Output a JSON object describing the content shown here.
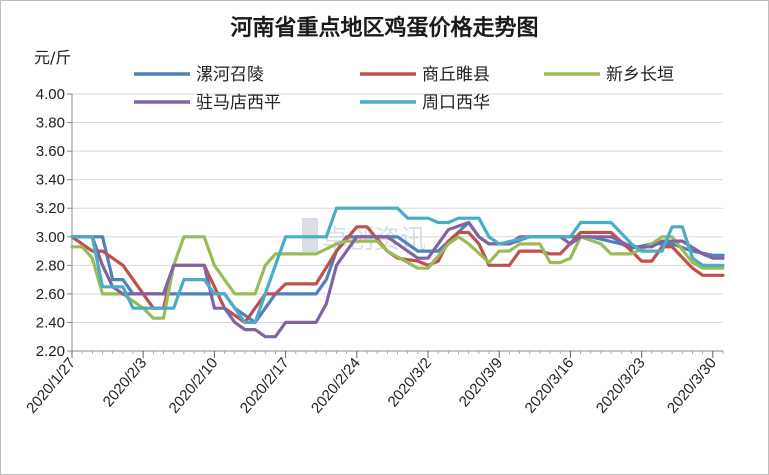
{
  "chart_data": {
    "type": "line",
    "title": "河南省重点地区鸡蛋价格走势图",
    "y_unit": "元/斤",
    "ylim": [
      2.2,
      4.0
    ],
    "yticks": [
      2.2,
      2.4,
      2.6,
      2.8,
      3.0,
      3.2,
      3.4,
      3.6,
      3.8,
      4.0
    ],
    "ytick_labels": [
      "2.20",
      "2.40",
      "2.60",
      "2.80",
      "3.00",
      "3.20",
      "3.40",
      "3.60",
      "3.80",
      "4.00"
    ],
    "x_start": "2020-01-27",
    "x_end": "2020-03-31",
    "xtick_labels": [
      "2020/1/27",
      "2020/2/3",
      "2020/2/10",
      "2020/2/17",
      "2020/2/24",
      "2020/3/2",
      "2020/3/9",
      "2020/3/16",
      "2020/3/23",
      "2020/3/30"
    ],
    "grid": "horizontal",
    "legend_position": "top",
    "watermark": "卓创资讯",
    "series": [
      {
        "name": "漯河召陵",
        "color": "#4f81bd",
        "points": [
          [
            "2020-01-27",
            3.0
          ],
          [
            "2020-01-30",
            3.0
          ],
          [
            "2020-01-31",
            2.7
          ],
          [
            "2020-02-01",
            2.7
          ],
          [
            "2020-02-02",
            2.6
          ],
          [
            "2020-02-05",
            2.6
          ],
          [
            "2020-02-06",
            2.6
          ],
          [
            "2020-02-07",
            2.6
          ],
          [
            "2020-02-11",
            2.6
          ],
          [
            "2020-02-12",
            2.5
          ],
          [
            "2020-02-14",
            2.4
          ],
          [
            "2020-02-15",
            2.5
          ],
          [
            "2020-02-16",
            2.6
          ],
          [
            "2020-02-20",
            2.6
          ],
          [
            "2020-02-21",
            2.7
          ],
          [
            "2020-02-22",
            2.9
          ],
          [
            "2020-02-23",
            3.0
          ],
          [
            "2020-02-28",
            3.0
          ],
          [
            "2020-03-01",
            2.9
          ],
          [
            "2020-03-03",
            2.9
          ],
          [
            "2020-03-06",
            3.1
          ],
          [
            "2020-03-07",
            3.0
          ],
          [
            "2020-03-08",
            2.95
          ],
          [
            "2020-03-10",
            2.95
          ],
          [
            "2020-03-12",
            3.0
          ],
          [
            "2020-03-15",
            3.0
          ],
          [
            "2020-03-17",
            3.0
          ],
          [
            "2020-03-18",
            3.0
          ],
          [
            "2020-03-21",
            2.95
          ],
          [
            "2020-03-22",
            2.92
          ],
          [
            "2020-03-24",
            2.95
          ],
          [
            "2020-03-26",
            2.95
          ],
          [
            "2020-03-28",
            2.9
          ],
          [
            "2020-03-30",
            2.87
          ],
          [
            "2020-03-31",
            2.87
          ]
        ]
      },
      {
        "name": "商丘睢县",
        "color": "#c0504d",
        "points": [
          [
            "2020-01-27",
            3.0
          ],
          [
            "2020-01-29",
            2.9
          ],
          [
            "2020-01-30",
            2.9
          ],
          [
            "2020-02-01",
            2.8
          ],
          [
            "2020-02-03",
            2.6
          ],
          [
            "2020-02-04",
            2.5
          ],
          [
            "2020-02-05",
            2.5
          ],
          [
            "2020-02-06",
            2.8
          ],
          [
            "2020-02-09",
            2.8
          ],
          [
            "2020-02-11",
            2.5
          ],
          [
            "2020-02-12",
            2.45
          ],
          [
            "2020-02-13",
            2.4
          ],
          [
            "2020-02-15",
            2.6
          ],
          [
            "2020-02-16",
            2.6
          ],
          [
            "2020-02-17",
            2.67
          ],
          [
            "2020-02-20",
            2.67
          ],
          [
            "2020-02-22",
            2.9
          ],
          [
            "2020-02-24",
            3.07
          ],
          [
            "2020-02-25",
            3.07
          ],
          [
            "2020-02-27",
            2.9
          ],
          [
            "2020-02-28",
            2.85
          ],
          [
            "2020-03-01",
            2.83
          ],
          [
            "2020-03-02",
            2.8
          ],
          [
            "2020-03-03",
            2.83
          ],
          [
            "2020-03-04",
            2.97
          ],
          [
            "2020-03-05",
            3.03
          ],
          [
            "2020-03-06",
            3.03
          ],
          [
            "2020-03-07",
            2.95
          ],
          [
            "2020-03-08",
            2.8
          ],
          [
            "2020-03-10",
            2.8
          ],
          [
            "2020-03-11",
            2.9
          ],
          [
            "2020-03-13",
            2.9
          ],
          [
            "2020-03-14",
            2.88
          ],
          [
            "2020-03-15",
            2.88
          ],
          [
            "2020-03-17",
            3.03
          ],
          [
            "2020-03-20",
            3.03
          ],
          [
            "2020-03-22",
            2.9
          ],
          [
            "2020-03-23",
            2.83
          ],
          [
            "2020-03-24",
            2.83
          ],
          [
            "2020-03-25",
            2.93
          ],
          [
            "2020-03-26",
            2.93
          ],
          [
            "2020-03-28",
            2.78
          ],
          [
            "2020-03-29",
            2.73
          ],
          [
            "2020-03-31",
            2.73
          ]
        ]
      },
      {
        "name": "新乡长垣",
        "color": "#9bbb59",
        "points": [
          [
            "2020-01-27",
            2.93
          ],
          [
            "2020-01-28",
            2.93
          ],
          [
            "2020-01-29",
            2.85
          ],
          [
            "2020-01-30",
            2.6
          ],
          [
            "2020-01-31",
            2.6
          ],
          [
            "2020-02-01",
            2.6
          ],
          [
            "2020-02-03",
            2.5
          ],
          [
            "2020-02-04",
            2.43
          ],
          [
            "2020-02-05",
            2.43
          ],
          [
            "2020-02-06",
            2.8
          ],
          [
            "2020-02-07",
            3.0
          ],
          [
            "2020-02-09",
            3.0
          ],
          [
            "2020-02-10",
            2.8
          ],
          [
            "2020-02-12",
            2.6
          ],
          [
            "2020-02-14",
            2.6
          ],
          [
            "2020-02-15",
            2.8
          ],
          [
            "2020-02-16",
            2.88
          ],
          [
            "2020-02-20",
            2.88
          ],
          [
            "2020-02-22",
            2.95
          ],
          [
            "2020-02-23",
            2.97
          ],
          [
            "2020-02-26",
            2.97
          ],
          [
            "2020-02-27",
            2.9
          ],
          [
            "2020-03-01",
            2.78
          ],
          [
            "2020-03-02",
            2.78
          ],
          [
            "2020-03-04",
            2.95
          ],
          [
            "2020-03-05",
            3.0
          ],
          [
            "2020-03-06",
            2.95
          ],
          [
            "2020-03-08",
            2.82
          ],
          [
            "2020-03-09",
            2.9
          ],
          [
            "2020-03-10",
            2.9
          ],
          [
            "2020-03-11",
            2.95
          ],
          [
            "2020-03-13",
            2.95
          ],
          [
            "2020-03-14",
            2.82
          ],
          [
            "2020-03-15",
            2.82
          ],
          [
            "2020-03-16",
            2.85
          ],
          [
            "2020-03-17",
            3.0
          ],
          [
            "2020-03-19",
            2.95
          ],
          [
            "2020-03-20",
            2.88
          ],
          [
            "2020-03-22",
            2.88
          ],
          [
            "2020-03-24",
            2.95
          ],
          [
            "2020-03-25",
            3.0
          ],
          [
            "2020-03-26",
            3.0
          ],
          [
            "2020-03-28",
            2.82
          ],
          [
            "2020-03-29",
            2.78
          ],
          [
            "2020-03-31",
            2.78
          ]
        ]
      },
      {
        "name": "驻马店西平",
        "color": "#8064a2",
        "points": [
          [
            "2020-01-27",
            3.0
          ],
          [
            "2020-01-29",
            3.0
          ],
          [
            "2020-01-30",
            2.8
          ],
          [
            "2020-01-31",
            2.65
          ],
          [
            "2020-02-01",
            2.6
          ],
          [
            "2020-02-04",
            2.6
          ],
          [
            "2020-02-05",
            2.6
          ],
          [
            "2020-02-06",
            2.8
          ],
          [
            "2020-02-09",
            2.8
          ],
          [
            "2020-02-10",
            2.5
          ],
          [
            "2020-02-11",
            2.5
          ],
          [
            "2020-02-12",
            2.4
          ],
          [
            "2020-02-13",
            2.35
          ],
          [
            "2020-02-14",
            2.35
          ],
          [
            "2020-02-15",
            2.3
          ],
          [
            "2020-02-16",
            2.3
          ],
          [
            "2020-02-17",
            2.4
          ],
          [
            "2020-02-20",
            2.4
          ],
          [
            "2020-02-21",
            2.53
          ],
          [
            "2020-02-22",
            2.8
          ],
          [
            "2020-02-23",
            2.9
          ],
          [
            "2020-02-24",
            3.0
          ],
          [
            "2020-02-27",
            3.0
          ],
          [
            "2020-02-28",
            2.95
          ],
          [
            "2020-03-01",
            2.85
          ],
          [
            "2020-03-02",
            2.85
          ],
          [
            "2020-03-03",
            2.95
          ],
          [
            "2020-03-04",
            3.05
          ],
          [
            "2020-03-06",
            3.1
          ],
          [
            "2020-03-07",
            3.0
          ],
          [
            "2020-03-08",
            2.95
          ],
          [
            "2020-03-10",
            2.95
          ],
          [
            "2020-03-11",
            3.0
          ],
          [
            "2020-03-15",
            3.0
          ],
          [
            "2020-03-16",
            2.95
          ],
          [
            "2020-03-17",
            3.0
          ],
          [
            "2020-03-20",
            3.0
          ],
          [
            "2020-03-22",
            2.93
          ],
          [
            "2020-03-24",
            2.93
          ],
          [
            "2020-03-25",
            2.97
          ],
          [
            "2020-03-27",
            2.97
          ],
          [
            "2020-03-29",
            2.88
          ],
          [
            "2020-03-30",
            2.85
          ],
          [
            "2020-03-31",
            2.85
          ]
        ]
      },
      {
        "name": "周口西华",
        "color": "#4bacc6",
        "points": [
          [
            "2020-01-27",
            3.0
          ],
          [
            "2020-01-29",
            3.0
          ],
          [
            "2020-01-30",
            2.65
          ],
          [
            "2020-02-01",
            2.65
          ],
          [
            "2020-02-02",
            2.5
          ],
          [
            "2020-02-05",
            2.5
          ],
          [
            "2020-02-06",
            2.5
          ],
          [
            "2020-02-07",
            2.7
          ],
          [
            "2020-02-09",
            2.7
          ],
          [
            "2020-02-10",
            2.6
          ],
          [
            "2020-02-11",
            2.6
          ],
          [
            "2020-02-13",
            2.4
          ],
          [
            "2020-02-14",
            2.4
          ],
          [
            "2020-02-16",
            2.8
          ],
          [
            "2020-02-17",
            3.0
          ],
          [
            "2020-02-20",
            3.0
          ],
          [
            "2020-02-21",
            3.0
          ],
          [
            "2020-02-22",
            3.2
          ],
          [
            "2020-02-28",
            3.2
          ],
          [
            "2020-02-29",
            3.13
          ],
          [
            "2020-03-02",
            3.13
          ],
          [
            "2020-03-03",
            3.1
          ],
          [
            "2020-03-04",
            3.1
          ],
          [
            "2020-03-05",
            3.13
          ],
          [
            "2020-03-07",
            3.13
          ],
          [
            "2020-03-08",
            3.0
          ],
          [
            "2020-03-09",
            2.95
          ],
          [
            "2020-03-12",
            3.0
          ],
          [
            "2020-03-16",
            3.0
          ],
          [
            "2020-03-17",
            3.1
          ],
          [
            "2020-03-20",
            3.1
          ],
          [
            "2020-03-22",
            2.95
          ],
          [
            "2020-03-23",
            2.9
          ],
          [
            "2020-03-25",
            2.9
          ],
          [
            "2020-03-26",
            3.07
          ],
          [
            "2020-03-27",
            3.07
          ],
          [
            "2020-03-28",
            2.85
          ],
          [
            "2020-03-29",
            2.8
          ],
          [
            "2020-03-31",
            2.8
          ]
        ]
      }
    ]
  }
}
